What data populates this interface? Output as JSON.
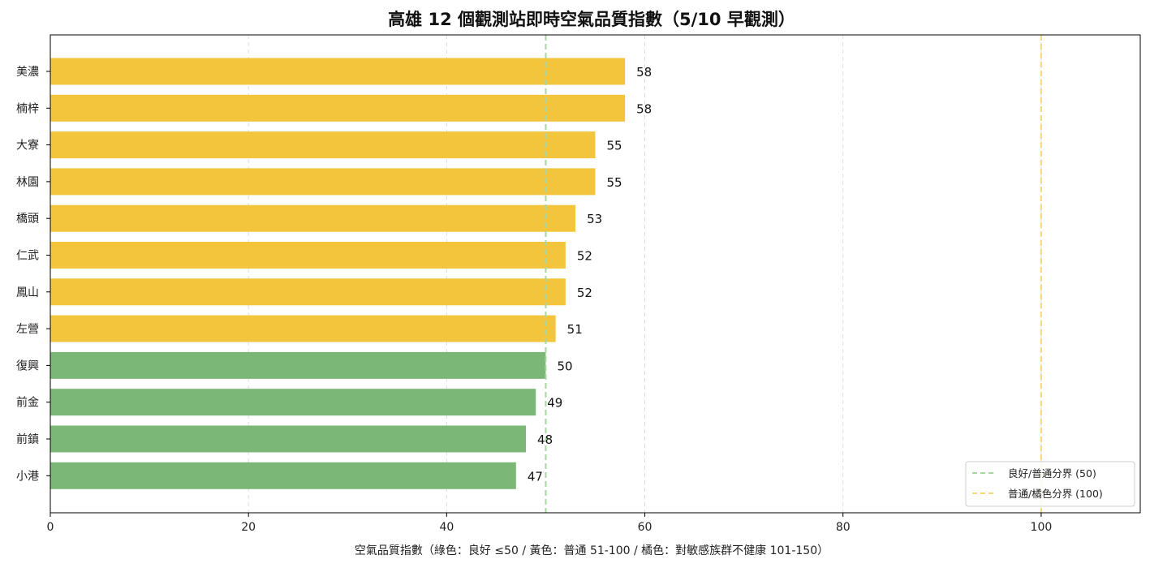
{
  "chart_data": {
    "type": "bar",
    "orientation": "horizontal",
    "title": "高雄 12 個觀測站即時空氣品質指數（5/10 早觀測）",
    "xlabel": "空氣品質指數（綠色：良好 ≤50 / 黃色：普通 51-100 / 橘色：對敏感族群不健康 101-150）",
    "ylabel": "",
    "xlim": [
      0,
      110
    ],
    "xticks": [
      0,
      20,
      40,
      60,
      80,
      100
    ],
    "grid": "vertical-dashed",
    "legend_position": "bottom-right",
    "categories": [
      "美濃",
      "楠梓",
      "大寮",
      "林園",
      "橋頭",
      "仁武",
      "鳳山",
      "左營",
      "復興",
      "前金",
      "前鎮",
      "小港"
    ],
    "values": [
      58,
      58,
      55,
      55,
      53,
      52,
      52,
      51,
      50,
      49,
      48,
      47
    ],
    "bar_colors": [
      "#f2c53d",
      "#f2c53d",
      "#f2c53d",
      "#f2c53d",
      "#f2c53d",
      "#f2c53d",
      "#f2c53d",
      "#f2c53d",
      "#7bb878",
      "#7bb878",
      "#7bb878",
      "#7bb878"
    ],
    "reference_lines": [
      {
        "value": 50,
        "label": "良好/普通分界 (50)",
        "color": "#a8d5a2"
      },
      {
        "value": 100,
        "label": "普通/橘色分界 (100)",
        "color": "#f7d77a"
      }
    ]
  }
}
